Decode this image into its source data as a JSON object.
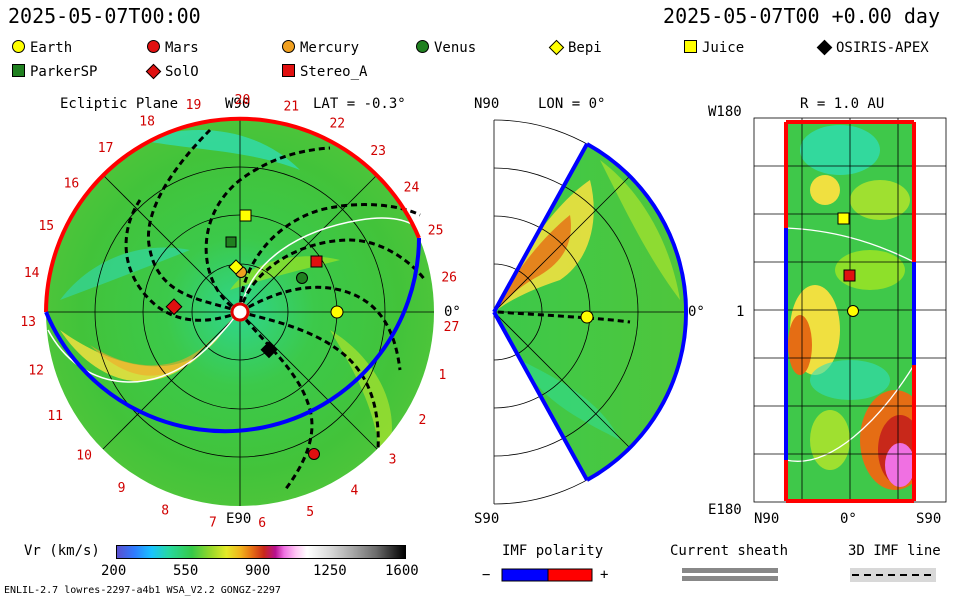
{
  "header": {
    "left_time": "2025-05-07T00:00",
    "right_time": "2025-05-07T00 +0.00 day"
  },
  "legend": {
    "items": [
      {
        "name": "Earth",
        "shape": "circle",
        "color": "#ffff00"
      },
      {
        "name": "Mars",
        "shape": "circle",
        "color": "#e01010"
      },
      {
        "name": "Mercury",
        "shape": "circle",
        "color": "#f0a020"
      },
      {
        "name": "Venus",
        "shape": "circle",
        "color": "#208020"
      },
      {
        "name": "Bepi",
        "shape": "diamond",
        "color": "#ffff00"
      },
      {
        "name": "Juice",
        "shape": "square",
        "color": "#ffff00"
      },
      {
        "name": "OSIRIS-APEX",
        "shape": "diamond",
        "color": "#000000"
      },
      {
        "name": "ParkerSP",
        "shape": "square",
        "color": "#208020"
      },
      {
        "name": "SolO",
        "shape": "diamond",
        "color": "#e01010"
      },
      {
        "name": "Stereo_A",
        "shape": "square",
        "color": "#e01010"
      }
    ]
  },
  "panels": {
    "ecliptic": {
      "title": "Ecliptic Plane",
      "top_label": "W90",
      "lat_label": "LAT = -0.3°",
      "bottom_label": "E90",
      "right_label": "0°"
    },
    "meridional": {
      "top_label": "N90",
      "lon_label": "LON = 0°",
      "bottom_label": "S90",
      "right_label": "0°"
    },
    "radial": {
      "r_label": "R = 1.0 AU",
      "top_left": "W180",
      "mid_left": "1",
      "bottom_left": "E180",
      "x_left": "N90",
      "x_mid": "0°",
      "x_right": "S90"
    }
  },
  "colorbar": {
    "label": "Vr (km/s)",
    "ticks": [
      "200",
      "550",
      "900",
      "1250",
      "1600"
    ]
  },
  "imf": {
    "title": "IMF polarity",
    "minus": "−",
    "plus": "+",
    "neg_color": "#0000ff",
    "pos_color": "#ff0000"
  },
  "sheath": {
    "title": "Current sheath"
  },
  "imf3d": {
    "title": "3D IMF line"
  },
  "footer": {
    "left": "ENLIL-2.7 lowres-2297-a4b1 WSA_V2.2 GONGZ-2297"
  },
  "chart_data": {
    "type": "heatmap",
    "quantity": "Vr (km/s)",
    "color_range": [
      200,
      1600
    ],
    "carrington_rotation_ticks": [
      "1",
      "2",
      "3",
      "4",
      "5",
      "6",
      "7",
      "8",
      "9",
      "10",
      "11",
      "12",
      "13",
      "14",
      "15",
      "16",
      "17",
      "18",
      "19",
      "20",
      "21",
      "22",
      "23",
      "24",
      "25",
      "26",
      "27"
    ],
    "radial_panel_y_ticks": [
      "W180",
      "1",
      "E180"
    ],
    "radial_panel_x_ticks": [
      "N90",
      "0°",
      "S90"
    ],
    "bodies_shown": [
      "Earth",
      "Mars",
      "Mercury",
      "Venus",
      "Bepi",
      "Juice",
      "OSIRIS-APEX",
      "ParkerSP",
      "SolO",
      "Stereo_A"
    ]
  }
}
